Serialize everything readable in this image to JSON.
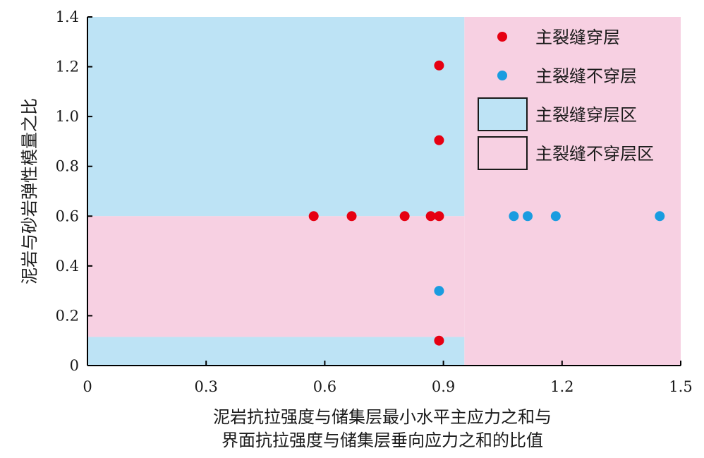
{
  "chart_data": {
    "type": "scatter",
    "xlabel_lines": [
      "泥岩抗拉强度与储集层最小水平主应力之和与",
      "界面抗拉强度与储集层垂向应力之和的比值"
    ],
    "ylabel": "泥岩与砂岩弹性模量之比",
    "xlim": [
      0,
      1.5
    ],
    "ylim": [
      0,
      1.4
    ],
    "x_ticks": [
      0,
      0.3,
      0.6,
      0.9,
      1.2,
      1.5
    ],
    "x_tick_labels": [
      "0",
      "0.3",
      "0.6",
      "0.9",
      "1.2",
      "1.5"
    ],
    "y_ticks": [
      0,
      0.2,
      0.4,
      0.6,
      0.8,
      1.0,
      1.2,
      1.4
    ],
    "y_tick_labels": [
      "0",
      "0.2",
      "0.4",
      "0.6",
      "0.8",
      "1.0",
      "1.2",
      "1.4"
    ],
    "grid": false,
    "legend_position": "top-right",
    "regions": [
      {
        "name": "主裂缝穿层区",
        "color": "#bde3f5",
        "x": [
          0,
          0.953
        ],
        "y": [
          0.6,
          1.4
        ]
      },
      {
        "name": "主裂缝穿层区",
        "color": "#bde3f5",
        "x": [
          0,
          0.953
        ],
        "y": [
          0,
          0.115
        ]
      },
      {
        "name": "主裂缝不穿层区",
        "color": "#f7d0e2",
        "x": [
          0,
          0.953
        ],
        "y": [
          0.115,
          0.6
        ]
      },
      {
        "name": "主裂缝不穿层区",
        "color": "#f7d0e2",
        "x": [
          0.953,
          1.5
        ],
        "y": [
          0,
          1.4
        ]
      }
    ],
    "series": [
      {
        "name": "主裂缝穿层",
        "color": "#e60012",
        "x": [
          0.572,
          0.668,
          0.802,
          0.868,
          0.889,
          0.889,
          0.889,
          0.889
        ],
        "y": [
          0.6,
          0.6,
          0.6,
          0.6,
          0.6,
          0.1,
          0.905,
          1.205
        ]
      },
      {
        "name": "主裂缝不穿层",
        "color": "#1a9ce0",
        "x": [
          0.889,
          1.078,
          1.113,
          1.184,
          1.447
        ],
        "y": [
          0.3,
          0.6,
          0.6,
          0.6,
          0.6
        ]
      }
    ],
    "legend": [
      {
        "label": "主裂缝穿层",
        "kind": "marker",
        "color": "#e60012"
      },
      {
        "label": "主裂缝不穿层",
        "kind": "marker",
        "color": "#1a9ce0"
      },
      {
        "label": "主裂缝穿层区",
        "kind": "patch",
        "color": "#bde3f5"
      },
      {
        "label": "主裂缝不穿层区",
        "kind": "patch",
        "color": "#f7d0e2"
      }
    ]
  }
}
